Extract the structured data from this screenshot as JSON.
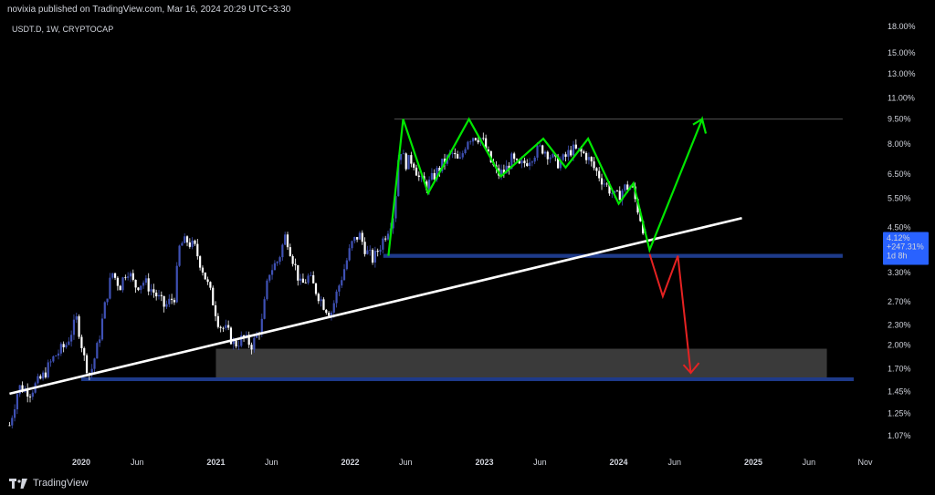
{
  "header": {
    "published_text": "novixia published on TradingView.com, Mar 16, 2024 20:29 UTC+3:30",
    "symbol_text": "USDT.D, 1W, CRYPTOCAP"
  },
  "brand": {
    "name": "TradingView",
    "icon": "tradingview-logo-icon"
  },
  "price_badge": {
    "value": "4.12%",
    "change": "+247.31%",
    "countdown": "1d 8h",
    "color": "#2962ff"
  },
  "colors": {
    "bull_candle": "#3f51b5",
    "bear_candle": "#ffffff",
    "trendline": "#ffffff",
    "green_path": "#00e600",
    "red_path": "#e52222",
    "support_band": "#1e3a8a",
    "range_box": "#3a3a3a",
    "resistance_line": "#555555"
  },
  "chart_data": {
    "type": "candlestick",
    "title": "",
    "yscale": "log",
    "ylim": [
      1.0,
      18.0
    ],
    "y_ticks": [
      "18.00%",
      "15.00%",
      "13.00%",
      "11.00%",
      "9.50%",
      "8.00%",
      "6.50%",
      "5.50%",
      "4.50%",
      "3.30%",
      "2.70%",
      "2.30%",
      "2.00%",
      "1.70%",
      "1.45%",
      "1.25%",
      "1.07%"
    ],
    "y_tick_values": [
      18.0,
      15.0,
      13.0,
      11.0,
      9.5,
      8.0,
      6.5,
      5.5,
      4.5,
      3.3,
      2.7,
      2.3,
      2.0,
      1.7,
      1.45,
      1.25,
      1.07
    ],
    "x_ticks": [
      {
        "label": "2020",
        "date": "2020-01-01",
        "bold": true
      },
      {
        "label": "Jun",
        "date": "2020-06-01",
        "bold": false
      },
      {
        "label": "2021",
        "date": "2021-01-01",
        "bold": true
      },
      {
        "label": "Jun",
        "date": "2021-06-01",
        "bold": false
      },
      {
        "label": "2022",
        "date": "2022-01-01",
        "bold": true
      },
      {
        "label": "Jun",
        "date": "2022-06-01",
        "bold": false
      },
      {
        "label": "2023",
        "date": "2023-01-01",
        "bold": true
      },
      {
        "label": "Jun",
        "date": "2023-06-01",
        "bold": false
      },
      {
        "label": "2024",
        "date": "2024-01-01",
        "bold": true
      },
      {
        "label": "Jun",
        "date": "2024-06-01",
        "bold": false
      },
      {
        "label": "2025",
        "date": "2025-01-01",
        "bold": true
      },
      {
        "label": "Jun",
        "date": "2025-06-01",
        "bold": false
      },
      {
        "label": "Nov",
        "date": "2025-11-01",
        "bold": false
      }
    ],
    "price_series": [
      [
        "2019-06-20",
        1.15
      ],
      [
        "2019-07-15",
        1.5
      ],
      [
        "2019-08-15",
        1.45
      ],
      [
        "2019-09-20",
        1.62
      ],
      [
        "2019-10-20",
        1.85
      ],
      [
        "2019-11-20",
        2.0
      ],
      [
        "2019-12-20",
        2.4
      ],
      [
        "2020-01-10",
        1.8
      ],
      [
        "2020-01-25",
        1.62
      ],
      [
        "2020-02-15",
        2.0
      ],
      [
        "2020-03-10",
        2.8
      ],
      [
        "2020-03-25",
        3.3
      ],
      [
        "2020-04-15",
        3.0
      ],
      [
        "2020-05-05",
        3.4
      ],
      [
        "2020-05-25",
        3.0
      ],
      [
        "2020-06-20",
        3.1
      ],
      [
        "2020-07-20",
        2.85
      ],
      [
        "2020-08-15",
        2.6
      ],
      [
        "2020-09-10",
        2.8
      ],
      [
        "2020-09-25",
        4.0
      ],
      [
        "2020-10-15",
        4.1
      ],
      [
        "2020-11-05",
        3.9
      ],
      [
        "2020-11-25",
        3.4
      ],
      [
        "2020-12-20",
        2.8
      ],
      [
        "2021-01-10",
        2.3
      ],
      [
        "2021-02-01",
        2.2
      ],
      [
        "2021-02-20",
        2.0
      ],
      [
        "2021-03-15",
        2.1
      ],
      [
        "2021-04-10",
        2.0
      ],
      [
        "2021-05-05",
        2.3
      ],
      [
        "2021-05-25",
        3.3
      ],
      [
        "2021-06-20",
        3.6
      ],
      [
        "2021-07-10",
        4.3
      ],
      [
        "2021-07-30",
        3.6
      ],
      [
        "2021-08-20",
        3.0
      ],
      [
        "2021-09-10",
        3.2
      ],
      [
        "2021-10-01",
        2.9
      ],
      [
        "2021-10-25",
        2.6
      ],
      [
        "2021-11-10",
        2.5
      ],
      [
        "2021-12-01",
        3.0
      ],
      [
        "2021-12-20",
        3.5
      ],
      [
        "2022-01-05",
        4.0
      ],
      [
        "2022-01-25",
        4.3
      ],
      [
        "2022-02-15",
        3.8
      ],
      [
        "2022-03-05",
        3.6
      ],
      [
        "2022-03-25",
        4.0
      ],
      [
        "2022-04-15",
        4.5
      ],
      [
        "2022-05-01",
        5.0
      ],
      [
        "2022-05-15",
        8.0
      ],
      [
        "2022-05-30",
        7.0
      ],
      [
        "2022-06-20",
        7.2
      ],
      [
        "2022-07-10",
        6.2
      ],
      [
        "2022-07-30",
        6.0
      ],
      [
        "2022-08-20",
        6.5
      ],
      [
        "2022-09-10",
        7.0
      ],
      [
        "2022-10-05",
        7.5
      ],
      [
        "2022-10-25",
        7.0
      ],
      [
        "2022-11-15",
        8.3
      ],
      [
        "2022-12-05",
        8.5
      ],
      [
        "2022-12-25",
        8.3
      ],
      [
        "2023-01-15",
        7.2
      ],
      [
        "2023-02-05",
        6.5
      ],
      [
        "2023-02-25",
        6.6
      ],
      [
        "2023-03-15",
        7.2
      ],
      [
        "2023-04-05",
        6.8
      ],
      [
        "2023-04-25",
        7.1
      ],
      [
        "2023-05-15",
        7.5
      ],
      [
        "2023-06-05",
        7.8
      ],
      [
        "2023-06-25",
        7.5
      ],
      [
        "2023-07-15",
        7.0
      ],
      [
        "2023-08-05",
        7.2
      ],
      [
        "2023-08-25",
        7.7
      ],
      [
        "2023-09-15",
        7.6
      ],
      [
        "2023-10-05",
        7.4
      ],
      [
        "2023-10-25",
        6.8
      ],
      [
        "2023-11-15",
        6.3
      ],
      [
        "2023-12-05",
        5.9
      ],
      [
        "2023-12-25",
        5.5
      ],
      [
        "2024-01-15",
        5.9
      ],
      [
        "2024-02-05",
        6.0
      ],
      [
        "2024-02-20",
        5.2
      ],
      [
        "2024-03-05",
        4.6
      ],
      [
        "2024-03-16",
        4.12
      ]
    ],
    "trendline": [
      [
        "2019-06-20",
        1.43
      ],
      [
        "2024-12-01",
        4.8
      ]
    ],
    "resistance_line": {
      "start": "2022-05-01",
      "end": "2025-09-01",
      "value": 9.5
    },
    "support_band": {
      "start": "2022-04-01",
      "end": "2025-09-01",
      "low": 3.65,
      "high": 3.75
    },
    "lower_band": {
      "start": "2020-01-01",
      "end": "2025-10-01",
      "low": 1.56,
      "high": 1.6
    },
    "range_box": {
      "start": "2021-01-01",
      "end": "2025-07-20",
      "low": 1.6,
      "high": 1.95
    },
    "green_path": [
      [
        "2022-04-15",
        3.7
      ],
      [
        "2022-05-25",
        9.5
      ],
      [
        "2022-08-01",
        5.7
      ],
      [
        "2022-11-20",
        9.5
      ],
      [
        "2023-02-15",
        6.4
      ],
      [
        "2023-06-10",
        8.3
      ],
      [
        "2023-08-10",
        6.8
      ],
      [
        "2023-10-10",
        8.3
      ],
      [
        "2024-01-01",
        5.3
      ],
      [
        "2024-02-10",
        6.1
      ],
      [
        "2024-03-25",
        3.85
      ],
      [
        "2024-08-15",
        9.5
      ],
      [
        "2024-08-25",
        8.6
      ]
    ],
    "red_path": [
      [
        "2024-03-25",
        3.75
      ],
      [
        "2024-04-30",
        2.8
      ],
      [
        "2024-06-10",
        3.7
      ],
      [
        "2024-07-15",
        1.65
      ]
    ]
  }
}
